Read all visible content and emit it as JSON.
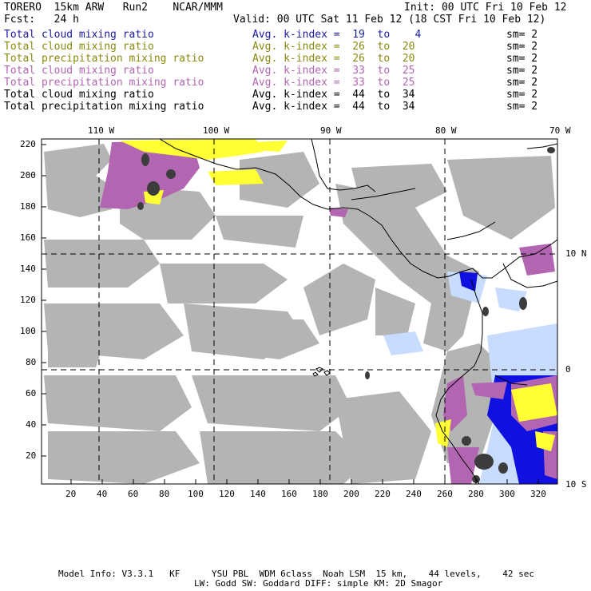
{
  "header": {
    "model": "TORERO  15km ARW   Run2    NCAR/MMM",
    "init": "Init: 00 UTC Fri 10 Feb 12",
    "fcst": "Fcst:   24 h",
    "valid": "Valid: 00 UTC Sat 11 Feb 12 (18 CST Fri 10 Feb 12)"
  },
  "legend": [
    {
      "field": "Total cloud mixing ratio",
      "stat": "Avg. k-index =  19  to    4",
      "sm": "sm= 2",
      "color": "#1a1aa0"
    },
    {
      "field": "Total cloud mixing ratio",
      "stat": "Avg. k-index =  26  to  20",
      "sm": "sm= 2",
      "color": "#8a8a10"
    },
    {
      "field": "Total precipitation mixing ratio",
      "stat": "Avg. k-index =  26  to  20",
      "sm": "sm= 2",
      "color": "#8a8a10"
    },
    {
      "field": "Total cloud mixing ratio",
      "stat": "Avg. k-index =  33  to  25",
      "sm": "sm= 2",
      "color": "#b266b2"
    },
    {
      "field": "Total precipitation mixing ratio",
      "stat": "Avg. k-index =  33  to  25",
      "sm": "sm= 2",
      "color": "#b266b2"
    },
    {
      "field": "Total cloud mixing ratio",
      "stat": "Avg. k-index =  44  to  34",
      "sm": "sm= 2",
      "color": "#000000"
    },
    {
      "field": "Total precipitation mixing ratio",
      "stat": "Avg. k-index =  44  to  34",
      "sm": "sm= 2",
      "color": "#000000"
    }
  ],
  "axes": {
    "top_lon": [
      "110 W",
      "100 W",
      "90 W",
      "80 W",
      "70 W"
    ],
    "right_lat": [
      "10 N",
      "0",
      "10 S"
    ],
    "left_y": [
      "220",
      "200",
      "180",
      "160",
      "140",
      "120",
      "100",
      "80",
      "60",
      "40",
      "20"
    ],
    "bottom_x": [
      "20",
      "40",
      "60",
      "80",
      "100",
      "120",
      "140",
      "160",
      "180",
      "200",
      "220",
      "240",
      "260",
      "280",
      "300",
      "320"
    ]
  },
  "footer": {
    "line1": "Model Info: V3.3.1   KF      YSU PBL  WDM 6class  Noah LSM  15 km,    44 levels,    42 sec",
    "line2": "LW: Godd SW: Goddard DIFF: simple KM: 2D Smagor"
  },
  "colors": {
    "cloud_gray": "#b4b4b4",
    "dark_core": "#3c3c3c",
    "magenta": "#b266b2",
    "yellow": "#ffff33",
    "blue": "#1010e0",
    "light_blue": "#c8dcff"
  }
}
